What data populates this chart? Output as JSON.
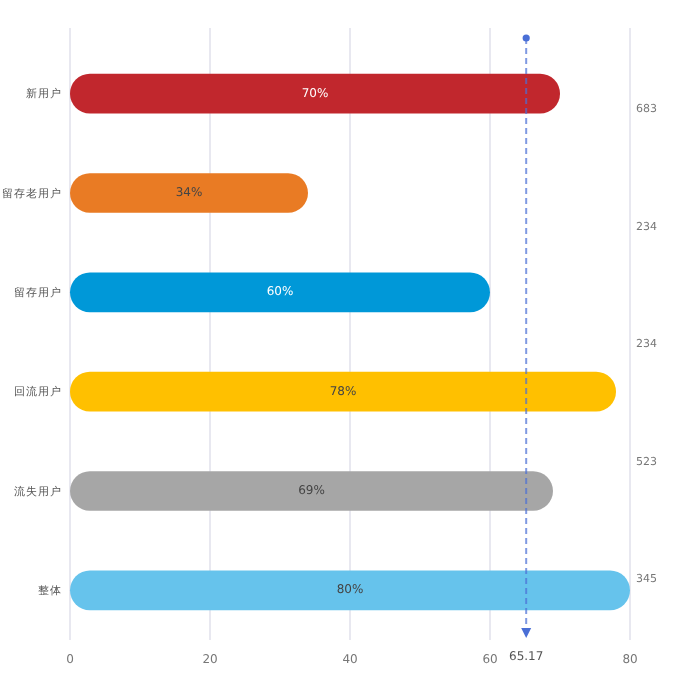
{
  "chart_data": {
    "type": "bar",
    "orientation": "horizontal",
    "categories": [
      "新用户",
      "留存老用户",
      "留存用户",
      "回流用户",
      "流失用户",
      "整体"
    ],
    "values": [
      70,
      34,
      60,
      78,
      69,
      80
    ],
    "value_labels": [
      "70%",
      "34%",
      "60%",
      "78%",
      "69%",
      "80%"
    ],
    "colors": [
      "#c1272d",
      "#e97b24",
      "#0098d8",
      "#ffc000",
      "#a6a6a6",
      "#66c3ec"
    ],
    "xlim": [
      0,
      80
    ],
    "xticks": [
      0,
      20,
      40,
      60,
      80
    ],
    "grid": "x",
    "ref_lines": [
      {
        "axis": "x",
        "value": 65.17,
        "label": "65.17",
        "color": "#4a6fd6",
        "line_style": "dashed"
      }
    ],
    "annotations": [
      "683",
      "234",
      "234",
      "523",
      "345"
    ]
  }
}
